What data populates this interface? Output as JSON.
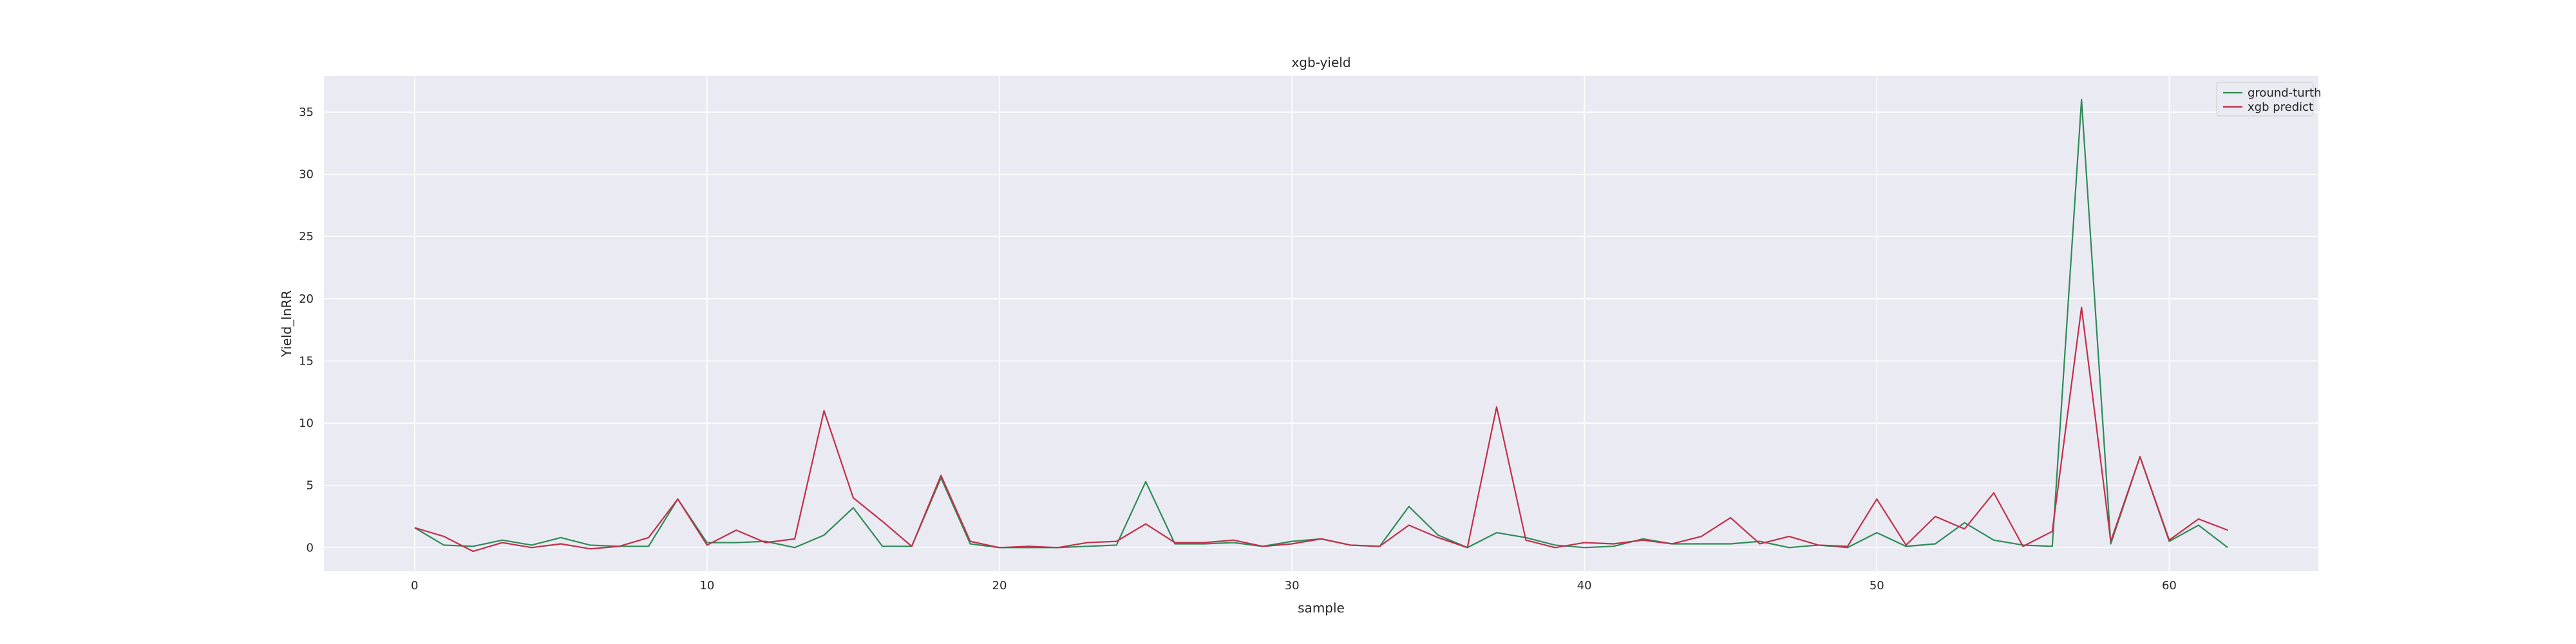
{
  "chart_data": {
    "type": "line",
    "title": "xgb-yield",
    "xlabel": "sample",
    "ylabel": "Yield_lnRR",
    "xlim": [
      -3.1,
      65.1
    ],
    "ylim": [
      -1.9,
      37.9
    ],
    "xticks": [
      0,
      10,
      20,
      30,
      40,
      50,
      60
    ],
    "yticks": [
      0,
      5,
      10,
      15,
      20,
      25,
      30,
      35
    ],
    "grid": true,
    "legend_position": "top-right",
    "x": [
      0,
      1,
      2,
      3,
      4,
      5,
      6,
      7,
      8,
      9,
      10,
      11,
      12,
      13,
      14,
      15,
      16,
      17,
      18,
      19,
      20,
      21,
      22,
      23,
      24,
      25,
      26,
      27,
      28,
      29,
      30,
      31,
      32,
      33,
      34,
      35,
      36,
      37,
      38,
      39,
      40,
      41,
      42,
      43,
      44,
      45,
      46,
      47,
      48,
      49,
      50,
      51,
      52,
      53,
      54,
      55,
      56,
      57,
      58,
      59,
      60,
      61,
      62
    ],
    "series": [
      {
        "name": "ground-turth",
        "color": "#2e8b57",
        "values": [
          1.6,
          0.2,
          0.1,
          0.6,
          0.2,
          0.8,
          0.2,
          0.1,
          0.1,
          3.9,
          0.4,
          0.4,
          0.5,
          0.0,
          1.0,
          3.2,
          0.1,
          0.1,
          5.6,
          0.3,
          0.0,
          0.0,
          0.0,
          0.1,
          0.2,
          5.3,
          0.3,
          0.3,
          0.4,
          0.1,
          0.5,
          0.7,
          0.2,
          0.1,
          3.3,
          1.0,
          0.0,
          1.2,
          0.8,
          0.2,
          0.0,
          0.1,
          0.7,
          0.3,
          0.3,
          0.3,
          0.5,
          0.0,
          0.2,
          0.0,
          1.2,
          0.1,
          0.3,
          2.0,
          0.6,
          0.2,
          0.1,
          36.0,
          0.3,
          7.3,
          0.5,
          1.8,
          0.0
        ]
      },
      {
        "name": "xgb predict",
        "color": "#c0304a",
        "values": [
          1.6,
          0.9,
          -0.3,
          0.4,
          0.0,
          0.3,
          -0.1,
          0.1,
          0.8,
          3.9,
          0.2,
          1.4,
          0.4,
          0.7,
          11.0,
          4.0,
          2.1,
          0.1,
          5.8,
          0.5,
          0.0,
          0.1,
          0.0,
          0.4,
          0.5,
          1.9,
          0.4,
          0.4,
          0.6,
          0.1,
          0.3,
          0.7,
          0.2,
          0.1,
          1.8,
          0.8,
          0.0,
          11.3,
          0.6,
          0.0,
          0.4,
          0.3,
          0.6,
          0.3,
          0.9,
          2.4,
          0.3,
          0.9,
          0.2,
          0.1,
          3.9,
          0.2,
          2.5,
          1.5,
          4.4,
          0.1,
          1.3,
          19.3,
          0.5,
          7.3,
          0.6,
          2.3,
          1.4
        ]
      }
    ]
  }
}
